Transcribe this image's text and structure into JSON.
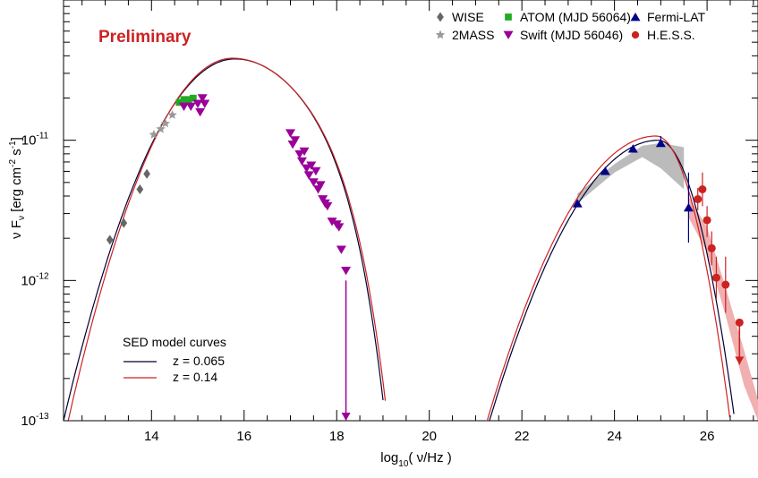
{
  "chart_data": {
    "type": "scatter",
    "title": "",
    "watermark": {
      "text": "Preliminary",
      "color": "#cc2222"
    },
    "xlabel": {
      "main": "log",
      "sub": "10",
      "rest": "( ν/Hz )"
    },
    "ylabel": {
      "p1": "ν F",
      "sub": "ν",
      "p2": " [erg cm",
      "sup1": "-2",
      "p3": " s",
      "sup2": "-1",
      "p4": "]"
    },
    "xlim": [
      12.1,
      27.1
    ],
    "ylim_log10": [
      -13,
      -10
    ],
    "log_y": true,
    "x_ticks": [
      14,
      16,
      18,
      20,
      22,
      24,
      26
    ],
    "x_tick_labels": [
      "14",
      "16",
      "18",
      "20",
      "22",
      "24",
      "26"
    ],
    "y_ticks": [
      {
        "value": -13,
        "base": "10",
        "exp": "-13"
      },
      {
        "value": -12,
        "base": "10",
        "exp": "-12"
      },
      {
        "value": -11,
        "base": "10",
        "exp": "-11"
      }
    ],
    "grid": false,
    "legend": {
      "position": "top-right",
      "entries": [
        {
          "label": "WISE",
          "marker": "diamond",
          "color": "#666666"
        },
        {
          "label": "2MASS",
          "marker": "star",
          "color": "#999999"
        },
        {
          "label": "ATOM (MJD 56064)",
          "marker": "square",
          "color": "#22aa22"
        },
        {
          "label": "Swift   (MJD 56046)",
          "marker": "triangle-down",
          "color": "#990099"
        },
        {
          "label": "Fermi-LAT",
          "marker": "triangle-up",
          "color": "#000088"
        },
        {
          "label": "H.E.S.S.",
          "marker": "circle",
          "color": "#cc2222"
        }
      ]
    },
    "model_legend": {
      "title": "SED model curves",
      "position": "bottom-left",
      "entries": [
        {
          "label": "z = 0.065",
          "color": "#000033"
        },
        {
          "label": "z = 0.14",
          "color": "#cc2222"
        }
      ]
    },
    "series": [
      {
        "name": "WISE",
        "marker": "diamond",
        "color": "#666666",
        "points": [
          [
            13.1,
            -11.71
          ],
          [
            13.4,
            -11.59
          ],
          [
            13.75,
            -11.35
          ],
          [
            13.9,
            -11.24
          ]
        ]
      },
      {
        "name": "2MASS",
        "marker": "star",
        "color": "#999999",
        "points": [
          [
            14.05,
            -10.96
          ],
          [
            14.2,
            -10.92
          ],
          [
            14.3,
            -10.88
          ],
          [
            14.45,
            -10.82
          ]
        ]
      },
      {
        "name": "ATOM (MJD 56064)",
        "marker": "square",
        "color": "#22aa22",
        "points": [
          [
            14.6,
            -10.73
          ],
          [
            14.7,
            -10.71
          ],
          [
            14.8,
            -10.71
          ],
          [
            14.9,
            -10.7
          ]
        ]
      },
      {
        "name": "Swift   (MJD 56046)",
        "marker": "triangle-down",
        "color": "#990099",
        "points": [
          [
            14.7,
            -10.76
          ],
          [
            14.85,
            -10.76
          ],
          [
            15.0,
            -10.74
          ],
          [
            15.05,
            -10.8
          ],
          [
            15.1,
            -10.7
          ],
          [
            15.15,
            -10.74
          ],
          [
            17.0,
            -10.95
          ],
          [
            17.05,
            -11.03
          ],
          [
            17.1,
            -11.0
          ],
          [
            17.2,
            -11.1
          ],
          [
            17.25,
            -11.15
          ],
          [
            17.3,
            -11.08
          ],
          [
            17.35,
            -11.2
          ],
          [
            17.4,
            -11.25
          ],
          [
            17.45,
            -11.18
          ],
          [
            17.5,
            -11.3
          ],
          [
            17.55,
            -11.22
          ],
          [
            17.6,
            -11.35
          ],
          [
            17.65,
            -11.32
          ],
          [
            17.7,
            -11.42
          ],
          [
            17.75,
            -11.45
          ],
          [
            17.8,
            -11.47
          ],
          [
            17.9,
            -11.58
          ],
          [
            18.0,
            -11.6
          ],
          [
            18.05,
            -11.62
          ],
          [
            18.1,
            -11.78
          ],
          [
            18.2,
            -11.93
          ]
        ]
      },
      {
        "name": "Fermi-LAT",
        "marker": "triangle-up",
        "color": "#000088",
        "points": [
          [
            23.2,
            -11.45
          ],
          [
            23.8,
            -11.22
          ],
          [
            24.4,
            -11.06
          ],
          [
            25.0,
            -11.02
          ],
          [
            25.6,
            -11.48
          ]
        ],
        "err_low": [
          0,
          0,
          0,
          0,
          0.25
        ],
        "err_high": [
          0,
          0,
          0,
          0.05,
          0.25
        ]
      },
      {
        "name": "H.E.S.S.",
        "marker": "circle",
        "color": "#cc2222",
        "points": [
          [
            25.8,
            -11.42
          ],
          [
            25.9,
            -11.35
          ],
          [
            26.0,
            -11.57
          ],
          [
            26.1,
            -11.77
          ],
          [
            26.2,
            -11.98
          ],
          [
            26.4,
            -12.03
          ],
          [
            26.7,
            -12.3
          ]
        ],
        "err_low": [
          0.08,
          0.12,
          0.12,
          0.12,
          0.15,
          0.2,
          0.25
        ],
        "err_high": [
          0.08,
          0.12,
          0.1,
          0.12,
          0.15,
          0.2,
          0
        ]
      },
      {
        "name": "Swift upper limit",
        "marker": "arrow",
        "color": "#990099",
        "points": [
          [
            18.2,
            -12.0
          ]
        ],
        "arrow_to": -13
      },
      {
        "name": "H.E.S.S. upper limit",
        "marker": "arrow",
        "color": "#cc2222",
        "points": [
          [
            26.7,
            -12.3
          ]
        ],
        "arrow_to": -12.6
      }
    ],
    "model_curves": [
      {
        "name": "z = 0.065",
        "color": "#000033",
        "sync": {
          "peak_x": 15.8,
          "peak_y": -10.42,
          "left_end_x": 12.1,
          "left_end_y": -13,
          "right_end_x": 19.05
        },
        "ic": {
          "peak_x": 24.95,
          "peak_y": -11.0,
          "left_end_x": 21.3,
          "right_end_x": 26.6
        }
      },
      {
        "name": "z = 0.14",
        "color": "#cc2222",
        "sync": {
          "peak_x": 15.75,
          "peak_y": -10.415,
          "left_end_x": 12.2,
          "left_end_y": -13,
          "right_end_x": 19.1
        },
        "ic": {
          "peak_x": 24.9,
          "peak_y": -10.97,
          "left_end_x": 21.25,
          "right_end_x": 26.5
        }
      }
    ],
    "bands": [
      {
        "name": "Fermi-LAT band",
        "color": "#bbbbbb",
        "x": [
          23.2,
          24.0,
          24.6,
          25.0,
          25.5
        ],
        "upper": [
          -11.38,
          -11.17,
          -11.04,
          -11.02,
          -11.05
        ],
        "lower": [
          -11.45,
          -11.23,
          -11.12,
          -11.2,
          -11.35
        ]
      },
      {
        "name": "H.E.S.S. band",
        "color": "#f0b0b0",
        "x": [
          25.6,
          26.0,
          26.4,
          26.8,
          27.1
        ],
        "upper": [
          -11.4,
          -11.62,
          -12.05,
          -12.5,
          -12.85
        ],
        "lower": [
          -11.55,
          -11.8,
          -12.25,
          -12.75,
          -13.0
        ]
      }
    ]
  }
}
